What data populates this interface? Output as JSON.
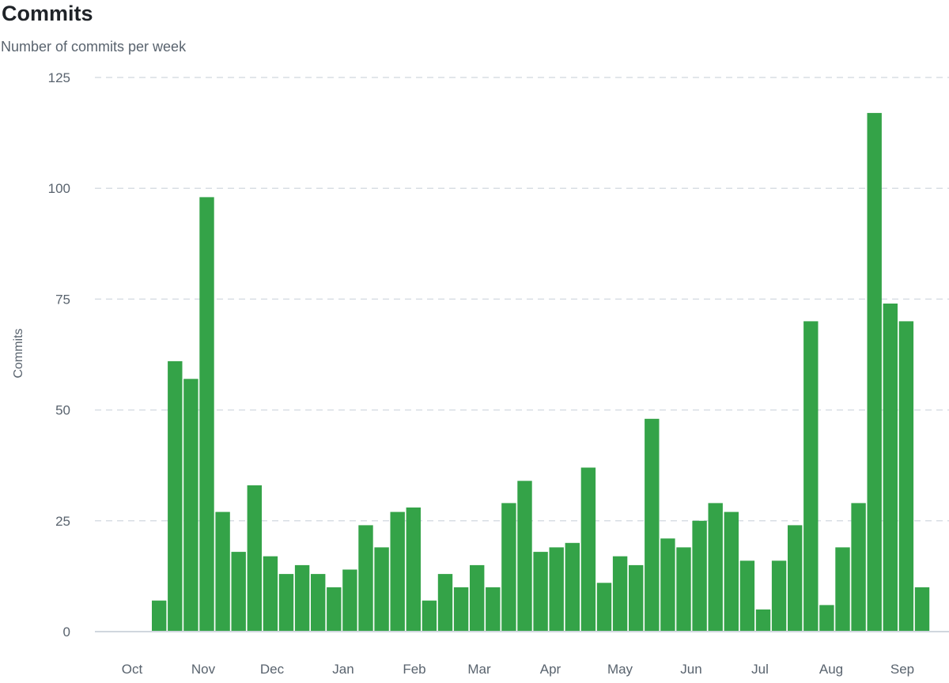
{
  "header": {
    "title": "Commits",
    "subtitle": "Number of commits per week"
  },
  "colors": {
    "bar": "#34a348",
    "grid": "#d8dee4",
    "axis": "#d0d7de",
    "text": "#59636e"
  },
  "chart_data": {
    "type": "bar",
    "ylabel": "Commits",
    "ylim": [
      0,
      125
    ],
    "yticks": [
      0,
      25,
      50,
      75,
      100,
      125
    ],
    "grid": "horizontal dashed",
    "month_labels": [
      "Oct",
      "Nov",
      "Dec",
      "Jan",
      "Feb",
      "Mar",
      "Apr",
      "May",
      "Jun",
      "Jul",
      "Aug",
      "Sep"
    ],
    "values": [
      0,
      0,
      0,
      7,
      61,
      57,
      98,
      27,
      18,
      33,
      17,
      13,
      15,
      13,
      10,
      14,
      24,
      19,
      27,
      28,
      7,
      13,
      10,
      15,
      10,
      29,
      34,
      18,
      19,
      20,
      37,
      11,
      17,
      15,
      48,
      21,
      19,
      25,
      29,
      27,
      16,
      5,
      16,
      24,
      70,
      6,
      19,
      29,
      117,
      74,
      70,
      10
    ]
  }
}
